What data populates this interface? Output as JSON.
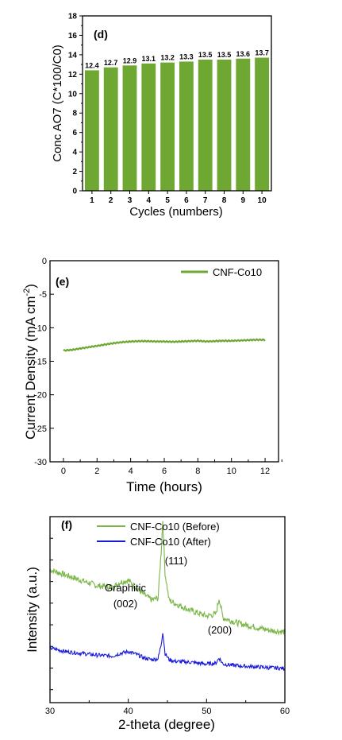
{
  "chart_data": [
    {
      "type": "bar",
      "panel": "(d)",
      "categories": [
        "1",
        "2",
        "3",
        "4",
        "5",
        "6",
        "7",
        "8",
        "9",
        "10"
      ],
      "values": [
        12.4,
        12.7,
        12.9,
        13.1,
        13.2,
        13.3,
        13.5,
        13.5,
        13.6,
        13.7
      ],
      "data_labels": [
        "12.4",
        "12.7",
        "12.9",
        "13.1",
        "13.2",
        "13.3",
        "13.5",
        "13.5",
        "13.6",
        "13.7"
      ],
      "xlabel": "Cycles (numbers)",
      "ylabel": "Conc AO7 (C*100/C0)",
      "ylim": [
        0,
        18
      ],
      "yticks": [
        0,
        2,
        4,
        6,
        8,
        10,
        12,
        14,
        16,
        18
      ],
      "bar_color": "#6ea832",
      "grid": false
    },
    {
      "type": "line",
      "panel": "(e)",
      "xlabel": "Time (hours)",
      "ylabel": "Current Density (mA cm",
      "ylabel_sup": "-2",
      "ylabel_close": ")",
      "xlim": [
        -0.8,
        12.8
      ],
      "ylim": [
        -30,
        0
      ],
      "xticks": [
        0,
        2,
        4,
        6,
        8,
        10,
        12
      ],
      "yticks": [
        0,
        -5,
        -10,
        -15,
        -20,
        -25,
        -30
      ],
      "legend_position": "top-right",
      "grid": false,
      "series": [
        {
          "name": "CNF-Co10",
          "color": "#6ea832",
          "x": [
            0,
            0.5,
            1,
            1.5,
            2,
            2.5,
            3,
            3.5,
            4,
            4.5,
            5,
            5.5,
            6,
            6.5,
            7,
            7.5,
            8,
            8.5,
            9,
            9.5,
            10,
            10.5,
            11,
            11.5,
            12
          ],
          "y": [
            -13.4,
            -13.3,
            -13.1,
            -12.9,
            -12.7,
            -12.5,
            -12.3,
            -12.15,
            -12.05,
            -12.0,
            -12.0,
            -12.05,
            -12.05,
            -12.1,
            -12.05,
            -12.0,
            -11.95,
            -12.05,
            -12.0,
            -11.95,
            -11.95,
            -11.9,
            -11.85,
            -11.8,
            -11.8
          ]
        }
      ]
    },
    {
      "type": "line",
      "panel": "(f)",
      "xlabel": "2-theta (degree)",
      "ylabel": "Intensity (a.u.)",
      "xlim": [
        30,
        60
      ],
      "xticks": [
        30,
        40,
        50,
        60
      ],
      "yticks_labeled": false,
      "legend_position": "top",
      "grid": false,
      "annotations": [
        {
          "text": "Graphitic",
          "x": 40,
          "key": "a1"
        },
        {
          "text": "(002)",
          "x": 40,
          "key": "a2"
        },
        {
          "text": "(111)",
          "x": 44.4,
          "key": "a3"
        },
        {
          "text": "(200)",
          "x": 51.6,
          "key": "a4"
        }
      ],
      "series": [
        {
          "name": "CNF-Co10 (Before)",
          "color": "#7ab648",
          "x": [
            30,
            32,
            34,
            36,
            38,
            39,
            40,
            41,
            42,
            43,
            43.8,
            44.2,
            44.4,
            44.7,
            45.2,
            46,
            48,
            50,
            51.2,
            51.6,
            52.1,
            54,
            56,
            58,
            60
          ],
          "y": [
            0.72,
            0.69,
            0.66,
            0.63,
            0.62,
            0.65,
            0.66,
            0.62,
            0.58,
            0.55,
            0.56,
            0.82,
            1.0,
            0.7,
            0.55,
            0.53,
            0.49,
            0.46,
            0.47,
            0.56,
            0.45,
            0.42,
            0.4,
            0.38,
            0.37
          ]
        },
        {
          "name": "CNF-Co10 (After)",
          "color": "#1a1adb",
          "x": [
            30,
            32,
            34,
            36,
            38,
            39,
            40,
            41,
            42,
            43,
            43.8,
            44.2,
            44.4,
            44.7,
            45.2,
            46,
            48,
            50,
            51.2,
            51.6,
            52.1,
            54,
            56,
            58,
            60
          ],
          "y": [
            0.28,
            0.26,
            0.25,
            0.24,
            0.235,
            0.25,
            0.26,
            0.245,
            0.225,
            0.215,
            0.22,
            0.3,
            0.37,
            0.25,
            0.215,
            0.205,
            0.2,
            0.19,
            0.195,
            0.225,
            0.19,
            0.18,
            0.175,
            0.17,
            0.165
          ]
        }
      ]
    }
  ]
}
